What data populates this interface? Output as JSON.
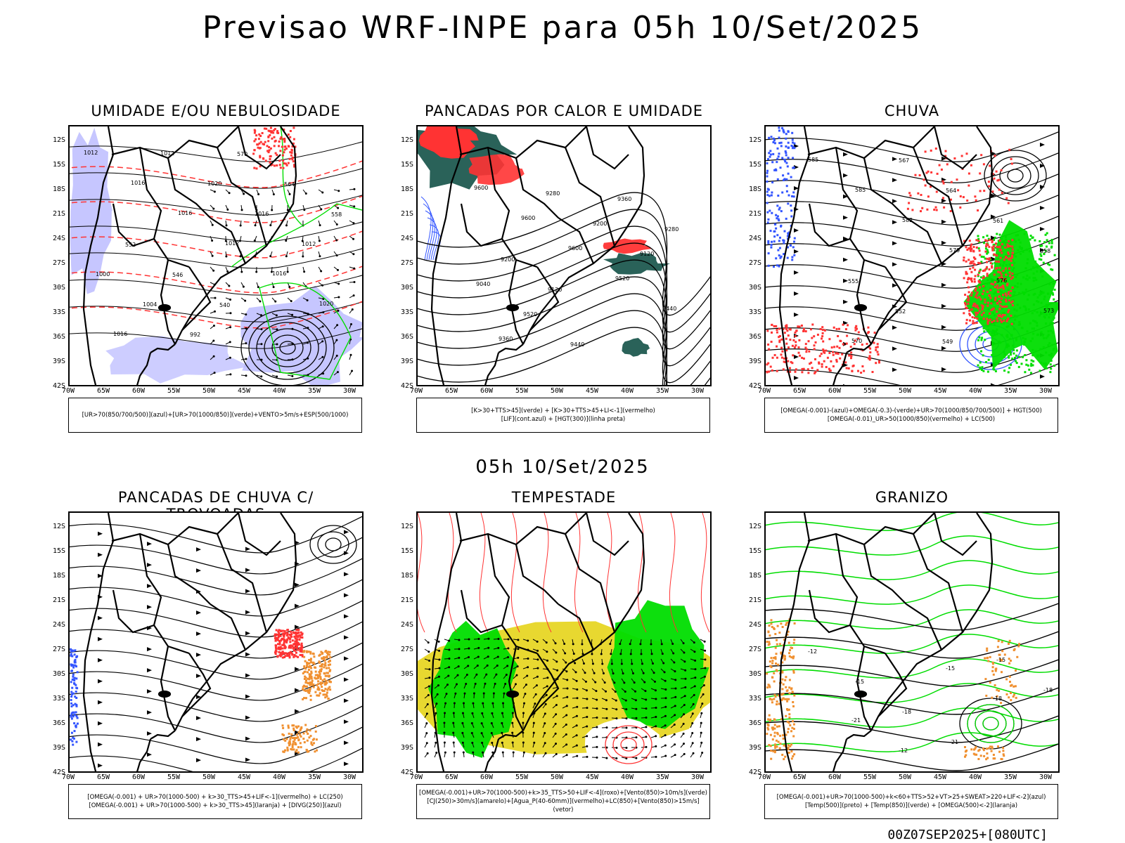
{
  "title": "Previsao WRF-INPE  para 05h 10/Set/2025",
  "mid_title": "05h 10/Set/2025",
  "footer": "00Z07SEP2025+[080UTC]",
  "lat_labels": [
    "12S",
    "15S",
    "18S",
    "21S",
    "24S",
    "27S",
    "30S",
    "33S",
    "36S",
    "39S",
    "42S"
  ],
  "lon_labels": [
    "70W",
    "65W",
    "60W",
    "55W",
    "50W",
    "45W",
    "40W",
    "35W",
    "30W"
  ],
  "colors": {
    "blue": "#3355ff",
    "lightblue": "#b8b8ff",
    "green": "#00dd00",
    "red": "#ff3333",
    "darkgreen": "#1f5a50",
    "yellow": "#e8d830",
    "orange": "#f09030"
  },
  "panels": [
    {
      "title": "UMIDADE E/OU NEBULOSIDADE",
      "legend": [
        "[UR>70(850/700/500)](azul)+[UR>70(1000/850)](verde)+VENTO>5m/s+ESP(500/1000)"
      ],
      "contour_labels": [
        "1012",
        "1016",
        "1016",
        "1012",
        "1016",
        "1020",
        "1016",
        "1012",
        "1020",
        "1016",
        "1012",
        "1000",
        "1004",
        "992",
        "570",
        "564",
        "558",
        "552",
        "546",
        "540"
      ]
    },
    {
      "title": "PANCADAS POR CALOR E UMIDADE",
      "legend": [
        "[K>30+TTS>45](verde) + [K>30+TTS>45+LI<-1](vermelho)",
        "[LIF](cont.azul) + [HGT(300)](linha preta)"
      ],
      "contour_labels": [
        "9600",
        "9600",
        "9600",
        "9520",
        "9440",
        "9360",
        "9280",
        "9200",
        "9120",
        "9040",
        "9520",
        "9440",
        "9360",
        "9280",
        "9200",
        "9120"
      ]
    },
    {
      "title": "CHUVA",
      "legend": [
        "[OMEGA(-0.001)-(azul)+OMEGA(-0.3)-(verde)+UR>70(1000/850/700/500)] + HGT(500)",
        "[OMEGA(-0.01)_UR>50(1000/850)(vermelho) + LC(500)"
      ],
      "contour_labels": [
        "585",
        "585",
        "582",
        "579",
        "576",
        "573",
        "570",
        "567",
        "564",
        "561",
        "558",
        "555",
        "552",
        "549"
      ]
    },
    {
      "title": "PANCADAS DE CHUVA C/ TROVOADAS",
      "legend": [
        "[OMEGA(-0.001) + UR>70(1000-500) + k>30_TTS>45+LIF<-1](vermelho) + LC(250)",
        "[OMEGA(-0.001) + UR>70(1000-500) + k>30_TTS>45](laranja) + [DIVG(250)](azul)"
      ],
      "contour_labels": []
    },
    {
      "title": "TEMPESTADE",
      "legend": [
        "[OMEGA(-0.001)+UR>70(1000-500)+k>35_TTS>50+LIF<-4](roxo)+[Vento(850)>10m/s](verde)",
        "[CJ(250)>30m/s](amarelo)+[Agua_P(40-60mm)](vermelho)+LC(850)+[Vento(850)>15m/s](vetor)"
      ],
      "contour_labels": []
    },
    {
      "title": "GRANIZO",
      "legend": [
        "[OMEGA(-0.001)+UR>70(1000-500)+k<60+TTS>52+VT>25+SWEAT>220+LIF<-2](azul)",
        "[Temp(500)](preto) + [Temp(850)](verde) + [OMEGA(500)<-2](laranja)"
      ],
      "contour_labels": [
        "-12",
        "-15",
        "-18",
        "-21",
        "-15",
        "-18",
        "-21",
        "-12",
        "-15",
        "-18"
      ]
    }
  ]
}
